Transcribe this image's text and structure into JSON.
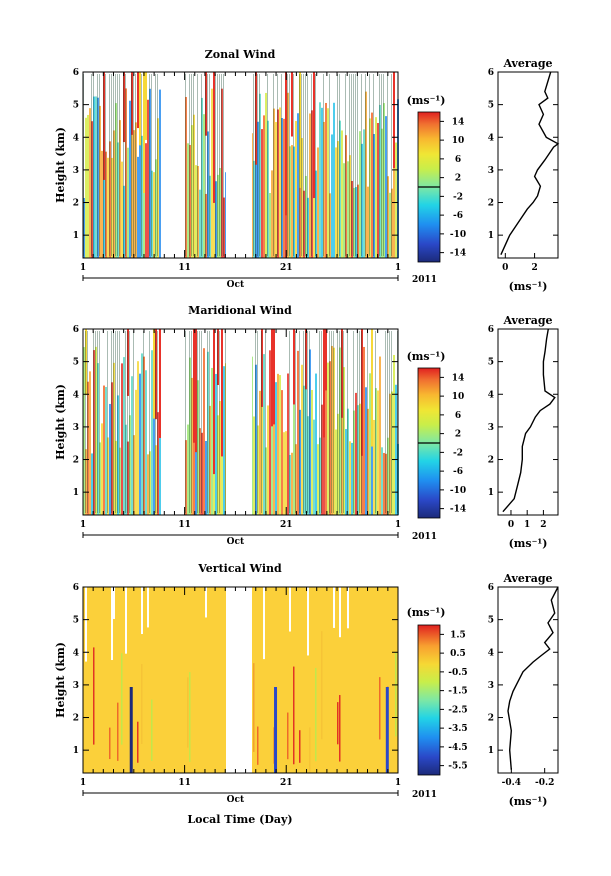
{
  "panels": [
    {
      "title": "Zonal Wind",
      "cbar_unit": "(ms⁻¹)",
      "cbar_range": [
        -16,
        16
      ],
      "cbar_ticks": [
        "14",
        "10",
        "6",
        "2",
        "-2",
        "-6",
        "-10",
        "-14"
      ],
      "avg_title": "Average",
      "avg_xlim": [
        -0.5,
        3.6
      ],
      "avg_xticks": [
        {
          "v": 0,
          "t": "0"
        },
        {
          "v": 2,
          "t": "2"
        }
      ],
      "avg_xlabel": "(ms⁻¹)",
      "date_label": "Oct",
      "year_label": "2011",
      "ylabel": "Height (km)"
    },
    {
      "title": "Maridional Wind",
      "cbar_unit": "(ms⁻¹)",
      "cbar_range": [
        -16,
        16
      ],
      "cbar_ticks": [
        "14",
        "10",
        "6",
        "2",
        "-2",
        "-6",
        "-10",
        "-14"
      ],
      "avg_title": "Average",
      "avg_xlim": [
        -0.8,
        2.9
      ],
      "avg_xticks": [
        {
          "v": 0,
          "t": "0"
        },
        {
          "v": 1,
          "t": "1"
        },
        {
          "v": 2,
          "t": "2"
        }
      ],
      "avg_xlabel": "(ms⁻¹)",
      "date_label": "Oct",
      "year_label": "2011",
      "ylabel": "Height (km)"
    },
    {
      "title": "Vertical Wind",
      "cbar_unit": "(ms⁻¹)",
      "cbar_range": [
        -6.5,
        2.5
      ],
      "cbar_ticks": [
        "1.5",
        "0.5",
        "-0.5",
        "-1.5",
        "-2.5",
        "-3.5",
        "-4.5",
        "-5.5"
      ],
      "avg_title": "Average",
      "avg_xlim": [
        -0.48,
        -0.12
      ],
      "avg_xticks": [
        {
          "v": -0.4,
          "t": "-0.4"
        },
        {
          "v": -0.2,
          "t": "-0.2"
        }
      ],
      "avg_xlabel": "(ms⁻¹)",
      "date_label": "Oct",
      "year_label": "2011",
      "ylabel": "Height (km)"
    }
  ],
  "xlabel": "Local Time (Day)",
  "chart_data": [
    {
      "type": "heatmap",
      "title": "Zonal Wind",
      "ylabel": "Height (km)",
      "xlabel": "",
      "x_tick_labels": [
        "1",
        "11",
        "21",
        "1"
      ],
      "ylim": [
        0.3,
        6
      ],
      "y_ticks": [
        1,
        2,
        3,
        4,
        5,
        6
      ],
      "xlim_days": [
        1,
        32
      ],
      "data_gap_days": [
        8.6,
        11.0
      ],
      "colorbar": {
        "unit": "(ms⁻¹)",
        "ticks": [
          14,
          10,
          6,
          2,
          -2,
          -6,
          -10,
          -14
        ]
      }
    },
    {
      "type": "line",
      "title": "Average",
      "series": [
        {
          "x": [
            -0.3,
            0.3,
            0.9,
            1.5,
            1.9,
            2.2,
            2.4,
            2.0,
            2.2,
            2.7,
            3.0,
            3.3,
            3.6,
            2.8,
            2.3,
            2.6,
            2.3,
            2.9,
            2.7,
            3.1
          ],
          "y": [
            0.4,
            1.0,
            1.4,
            1.8,
            2.0,
            2.2,
            2.5,
            2.8,
            3.0,
            3.3,
            3.5,
            3.7,
            3.8,
            4.0,
            4.4,
            4.7,
            5.0,
            5.2,
            5.4,
            6.0
          ]
        }
      ],
      "xlabel": "(ms⁻¹)",
      "ylim": [
        0.3,
        6
      ]
    },
    {
      "type": "heatmap",
      "title": "Maridional Wind",
      "ylabel": "Height (km)",
      "x_tick_labels": [
        "1",
        "11",
        "21",
        "1"
      ],
      "ylim": [
        0.3,
        6
      ],
      "colorbar": {
        "unit": "(ms⁻¹)",
        "ticks": [
          14,
          10,
          6,
          2,
          -2,
          -6,
          -10,
          -14
        ]
      }
    },
    {
      "type": "line",
      "title": "Average",
      "series": [
        {
          "x": [
            -0.5,
            0.2,
            0.4,
            0.6,
            0.7,
            0.7,
            0.9,
            1.2,
            1.5,
            1.8,
            2.4,
            2.7,
            2.1,
            2.0,
            2.0,
            2.1,
            2.2,
            2.3
          ],
          "y": [
            0.4,
            0.8,
            1.2,
            1.6,
            2.0,
            2.4,
            2.8,
            3.0,
            3.3,
            3.5,
            3.7,
            3.9,
            4.1,
            4.6,
            5.0,
            5.3,
            5.7,
            6.0
          ]
        }
      ],
      "xlabel": "(ms⁻¹)",
      "ylim": [
        0.3,
        6
      ]
    },
    {
      "type": "heatmap",
      "title": "Vertical Wind",
      "ylabel": "Height (km)",
      "xlabel": "Local Time (Day)",
      "x_tick_labels": [
        "1",
        "11",
        "21",
        "1"
      ],
      "ylim": [
        0.3,
        6
      ],
      "colorbar": {
        "unit": "(ms⁻¹)",
        "ticks": [
          1.5,
          0.5,
          -0.5,
          -1.5,
          -2.5,
          -3.5,
          -4.5,
          -5.5
        ]
      }
    },
    {
      "type": "line",
      "title": "Average",
      "series": [
        {
          "x": [
            -0.4,
            -0.41,
            -0.4,
            -0.42,
            -0.41,
            -0.39,
            -0.36,
            -0.33,
            -0.27,
            -0.22,
            -0.17,
            -0.2,
            -0.15,
            -0.18,
            -0.14,
            -0.16,
            -0.12
          ],
          "y": [
            0.4,
            1.0,
            1.6,
            2.2,
            2.5,
            2.8,
            3.1,
            3.4,
            3.7,
            3.9,
            4.1,
            4.3,
            4.6,
            4.9,
            5.2,
            5.6,
            6.0
          ]
        }
      ],
      "xlabel": "(ms⁻¹)",
      "ylim": [
        0.3,
        6
      ]
    }
  ]
}
